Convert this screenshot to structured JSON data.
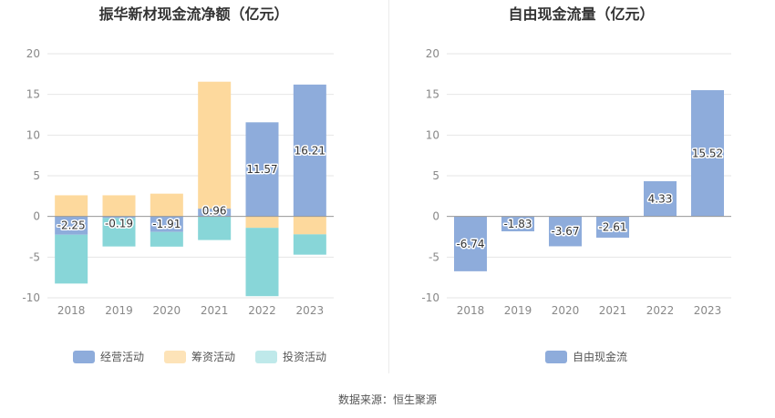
{
  "chart_data": [
    {
      "type": "bar",
      "stacked": true,
      "title": "振华新材现金流净额（亿元）",
      "categories": [
        "2018",
        "2019",
        "2020",
        "2021",
        "2022",
        "2023"
      ],
      "series": [
        {
          "name": "经营活动",
          "color": "#8eacdb",
          "values": [
            -2.25,
            -0.19,
            -1.91,
            0.96,
            11.57,
            16.21
          ],
          "labels": [
            "-2.25",
            "-0.19",
            "-1.91",
            "0.96",
            "11.57",
            "16.21"
          ]
        },
        {
          "name": "筹资活动",
          "color": "#fdd99d",
          "values": [
            2.6,
            2.6,
            2.8,
            15.6,
            -1.4,
            -2.2
          ]
        },
        {
          "name": "投资活动",
          "color": "#88d6d8",
          "values": [
            -6.0,
            -3.5,
            -1.8,
            -2.9,
            -8.4,
            -2.5
          ]
        }
      ],
      "legend": [
        {
          "name": "经营活动",
          "color": "#8eacdb"
        },
        {
          "name": "筹资活动",
          "color": "#fde3b8"
        },
        {
          "name": "投资活动",
          "color": "#bfe9ea"
        }
      ],
      "ylim": [
        -10,
        20
      ],
      "yticks": [
        "20",
        "15",
        "10",
        "5",
        "0",
        "-5",
        "-10"
      ],
      "ytick_values": [
        20,
        15,
        10,
        5,
        0,
        -5,
        -10
      ],
      "xlabel": "",
      "ylabel": "",
      "grid": true,
      "legend_position": "bottom"
    },
    {
      "type": "bar",
      "title": "自由现金流量（亿元）",
      "categories": [
        "2018",
        "2019",
        "2020",
        "2021",
        "2022",
        "2023"
      ],
      "series": [
        {
          "name": "自由现金流",
          "color": "#8eacdb",
          "values": [
            -6.74,
            -1.83,
            -3.67,
            -2.61,
            4.33,
            15.52
          ],
          "labels": [
            "-6.74",
            "-1.83",
            "-3.67",
            "-2.61",
            "4.33",
            "15.52"
          ]
        }
      ],
      "legend": [
        {
          "name": "自由现金流",
          "color": "#8eacdb"
        }
      ],
      "ylim": [
        -10,
        20
      ],
      "yticks": [
        "20",
        "15",
        "10",
        "5",
        "0",
        "-5",
        "-10"
      ],
      "ytick_values": [
        20,
        15,
        10,
        5,
        0,
        -5,
        -10
      ],
      "xlabel": "",
      "ylabel": "",
      "grid": true,
      "legend_position": "bottom"
    }
  ],
  "footer": {
    "source": "数据来源：恒生聚源"
  }
}
